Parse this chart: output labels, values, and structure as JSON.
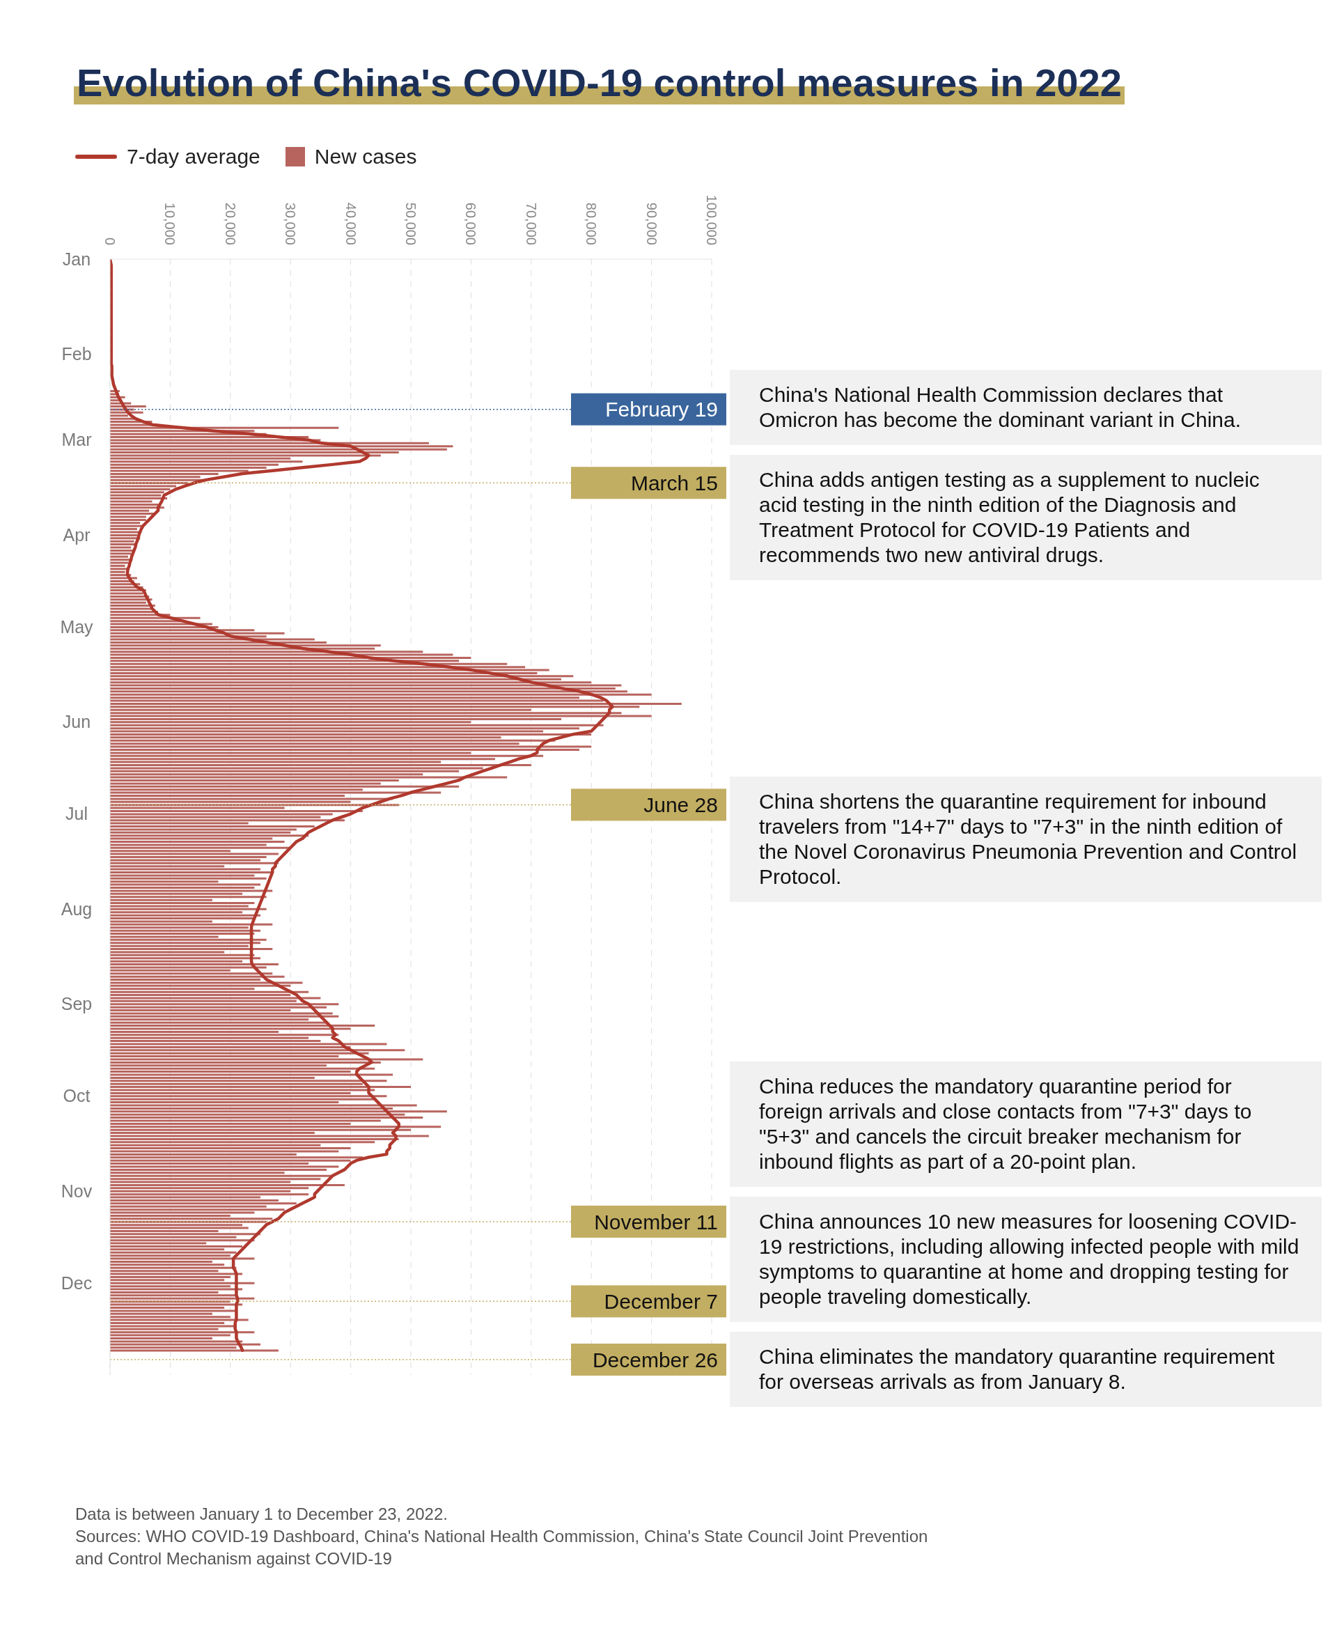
{
  "chart_data": {
    "type": "bar",
    "orientation": "horizontal",
    "title": "Evolution of China's COVID-19 control measures in 2022",
    "x": [
      "2022-01-01",
      "2022-01-02",
      "2022-01-03",
      "2022-01-04",
      "2022-01-05",
      "2022-01-06",
      "2022-01-07",
      "2022-01-08",
      "2022-01-09",
      "2022-01-10",
      "2022-01-11",
      "2022-01-12",
      "2022-01-13",
      "2022-01-14",
      "2022-01-15",
      "2022-01-16",
      "2022-01-17",
      "2022-01-18",
      "2022-01-19",
      "2022-01-20",
      "2022-01-21",
      "2022-01-22",
      "2022-01-23",
      "2022-01-24",
      "2022-01-25",
      "2022-01-26",
      "2022-01-27",
      "2022-01-28",
      "2022-01-29",
      "2022-01-30",
      "2022-01-31",
      "2022-02-01",
      "2022-02-02",
      "2022-02-03",
      "2022-02-04",
      "2022-02-05",
      "2022-02-06",
      "2022-02-07",
      "2022-02-08",
      "2022-02-09",
      "2022-02-10",
      "2022-02-11",
      "2022-02-12",
      "2022-02-13",
      "2022-02-14",
      "2022-02-15",
      "2022-02-16",
      "2022-02-17",
      "2022-02-18",
      "2022-02-19",
      "2022-02-20",
      "2022-02-21",
      "2022-02-22",
      "2022-02-23",
      "2022-02-24",
      "2022-02-25",
      "2022-02-26",
      "2022-02-27",
      "2022-02-28",
      "2022-03-01",
      "2022-03-02",
      "2022-03-03",
      "2022-03-04",
      "2022-03-05",
      "2022-03-06",
      "2022-03-07",
      "2022-03-08",
      "2022-03-09",
      "2022-03-10",
      "2022-03-11",
      "2022-03-12",
      "2022-03-13",
      "2022-03-14",
      "2022-03-15",
      "2022-03-16",
      "2022-03-17",
      "2022-03-18",
      "2022-03-19",
      "2022-03-20",
      "2022-03-21",
      "2022-03-22",
      "2022-03-23",
      "2022-03-24",
      "2022-03-25",
      "2022-03-26",
      "2022-03-27",
      "2022-03-28",
      "2022-03-29",
      "2022-03-30",
      "2022-03-31",
      "2022-04-01",
      "2022-04-02",
      "2022-04-03",
      "2022-04-04",
      "2022-04-05",
      "2022-04-06",
      "2022-04-07",
      "2022-04-08",
      "2022-04-09",
      "2022-04-10",
      "2022-04-11",
      "2022-04-12",
      "2022-04-13",
      "2022-04-14",
      "2022-04-15",
      "2022-04-16",
      "2022-04-17",
      "2022-04-18",
      "2022-04-19",
      "2022-04-20",
      "2022-04-21",
      "2022-04-22",
      "2022-04-23",
      "2022-04-24",
      "2022-04-25",
      "2022-04-26",
      "2022-04-27",
      "2022-04-28",
      "2022-04-29",
      "2022-04-30",
      "2022-05-01",
      "2022-05-02",
      "2022-05-03",
      "2022-05-04",
      "2022-05-05",
      "2022-05-06",
      "2022-05-07",
      "2022-05-08",
      "2022-05-09",
      "2022-05-10",
      "2022-05-11",
      "2022-05-12",
      "2022-05-13",
      "2022-05-14",
      "2022-05-15",
      "2022-05-16",
      "2022-05-17",
      "2022-05-18",
      "2022-05-19",
      "2022-05-20",
      "2022-05-21",
      "2022-05-22",
      "2022-05-23",
      "2022-05-24",
      "2022-05-25",
      "2022-05-26",
      "2022-05-27",
      "2022-05-28",
      "2022-05-29",
      "2022-05-30",
      "2022-05-31",
      "2022-06-01",
      "2022-06-02",
      "2022-06-03",
      "2022-06-04",
      "2022-06-05",
      "2022-06-06",
      "2022-06-07",
      "2022-06-08",
      "2022-06-09",
      "2022-06-10",
      "2022-06-11",
      "2022-06-12",
      "2022-06-13",
      "2022-06-14",
      "2022-06-15",
      "2022-06-16",
      "2022-06-17",
      "2022-06-18",
      "2022-06-19",
      "2022-06-20",
      "2022-06-21",
      "2022-06-22",
      "2022-06-23",
      "2022-06-24",
      "2022-06-25",
      "2022-06-26",
      "2022-06-27",
      "2022-06-28",
      "2022-06-29",
      "2022-06-30",
      "2022-07-01",
      "2022-07-02",
      "2022-07-03",
      "2022-07-04",
      "2022-07-05",
      "2022-07-06",
      "2022-07-07",
      "2022-07-08",
      "2022-07-09",
      "2022-07-10",
      "2022-07-11",
      "2022-07-12",
      "2022-07-13",
      "2022-07-14",
      "2022-07-15",
      "2022-07-16",
      "2022-07-17",
      "2022-07-18",
      "2022-07-19",
      "2022-07-20",
      "2022-07-21",
      "2022-07-22",
      "2022-07-23",
      "2022-07-24",
      "2022-07-25",
      "2022-07-26",
      "2022-07-27",
      "2022-07-28",
      "2022-07-29",
      "2022-07-30",
      "2022-07-31",
      "2022-08-01",
      "2022-08-02",
      "2022-08-03",
      "2022-08-04",
      "2022-08-05",
      "2022-08-06",
      "2022-08-07",
      "2022-08-08",
      "2022-08-09",
      "2022-08-10",
      "2022-08-11",
      "2022-08-12",
      "2022-08-13",
      "2022-08-14",
      "2022-08-15",
      "2022-08-16",
      "2022-08-17",
      "2022-08-18",
      "2022-08-19",
      "2022-08-20",
      "2022-08-21",
      "2022-08-22",
      "2022-08-23",
      "2022-08-24",
      "2022-08-25",
      "2022-08-26",
      "2022-08-27",
      "2022-08-28",
      "2022-08-29",
      "2022-08-30",
      "2022-08-31",
      "2022-09-01",
      "2022-09-02",
      "2022-09-03",
      "2022-09-04",
      "2022-09-05",
      "2022-09-06",
      "2022-09-07",
      "2022-09-08",
      "2022-09-09",
      "2022-09-10",
      "2022-09-11",
      "2022-09-12",
      "2022-09-13",
      "2022-09-14",
      "2022-09-15",
      "2022-09-16",
      "2022-09-17",
      "2022-09-18",
      "2022-09-19",
      "2022-09-20",
      "2022-09-21",
      "2022-09-22",
      "2022-09-23",
      "2022-09-24",
      "2022-09-25",
      "2022-09-26",
      "2022-09-27",
      "2022-09-28",
      "2022-09-29",
      "2022-09-30",
      "2022-10-01",
      "2022-10-02",
      "2022-10-03",
      "2022-10-04",
      "2022-10-05",
      "2022-10-06",
      "2022-10-07",
      "2022-10-08",
      "2022-10-09",
      "2022-10-10",
      "2022-10-11",
      "2022-10-12",
      "2022-10-13",
      "2022-10-14",
      "2022-10-15",
      "2022-10-16",
      "2022-10-17",
      "2022-10-18",
      "2022-10-19",
      "2022-10-20",
      "2022-10-21",
      "2022-10-22",
      "2022-10-23",
      "2022-10-24",
      "2022-10-25",
      "2022-10-26",
      "2022-10-27",
      "2022-10-28",
      "2022-10-29",
      "2022-10-30",
      "2022-10-31",
      "2022-11-01",
      "2022-11-02",
      "2022-11-03",
      "2022-11-04",
      "2022-11-05",
      "2022-11-06",
      "2022-11-07",
      "2022-11-08",
      "2022-11-09",
      "2022-11-10",
      "2022-11-11",
      "2022-11-12",
      "2022-11-13",
      "2022-11-14",
      "2022-11-15",
      "2022-11-16",
      "2022-11-17",
      "2022-11-18",
      "2022-11-19",
      "2022-11-20",
      "2022-11-21",
      "2022-11-22",
      "2022-11-23",
      "2022-11-24",
      "2022-11-25",
      "2022-11-26",
      "2022-11-27",
      "2022-11-28",
      "2022-11-29",
      "2022-11-30",
      "2022-12-01",
      "2022-12-02",
      "2022-12-03",
      "2022-12-04",
      "2022-12-05",
      "2022-12-06",
      "2022-12-07",
      "2022-12-08",
      "2022-12-09",
      "2022-12-10",
      "2022-12-11",
      "2022-12-12",
      "2022-12-13",
      "2022-12-14",
      "2022-12-15",
      "2022-12-16",
      "2022-12-17",
      "2022-12-18",
      "2022-12-19",
      "2022-12-20",
      "2022-12-21",
      "2022-12-22",
      "2022-12-23"
    ],
    "series": [
      {
        "name": "New cases",
        "color": "#b8645e",
        "values": [
          null,
          null,
          null,
          null,
          null,
          null,
          null,
          null,
          null,
          null,
          null,
          null,
          null,
          null,
          null,
          null,
          null,
          null,
          null,
          null,
          null,
          null,
          null,
          null,
          null,
          null,
          null,
          null,
          null,
          null,
          null,
          null,
          null,
          null,
          null,
          null,
          null,
          null,
          null,
          null,
          null,
          null,
          null,
          1600,
          1500,
          2500,
          2000,
          3500,
          6000,
          4000,
          5500,
          3000,
          4500,
          7000,
          8000,
          38000,
          24000,
          26000,
          33000,
          35000,
          53000,
          57000,
          56000,
          48000,
          45000,
          30000,
          32000,
          28000,
          26000,
          23000,
          18000,
          15000,
          16000,
          13000,
          11000,
          10000,
          9000,
          8500,
          9500,
          7000,
          8000,
          9000,
          6500,
          7500,
          6000,
          6000,
          5000,
          5500,
          4500,
          5000,
          4500,
          5000,
          4000,
          4500,
          3500,
          4000,
          3500,
          3000,
          3500,
          3000,
          2500,
          3000,
          2500,
          3500,
          4500,
          4000,
          5000,
          5500,
          6000,
          5500,
          6500,
          7000,
          6000,
          7500,
          7000,
          8000,
          10000,
          15000,
          12000,
          17000,
          18000,
          24000,
          29000,
          26000,
          34000,
          36000,
          45000,
          44000,
          52000,
          57000,
          60000,
          58000,
          66000,
          69000,
          73000,
          71000,
          77000,
          75000,
          80000,
          85000,
          84000,
          86000,
          90000,
          78000,
          82000,
          95000,
          88000,
          70000,
          85000,
          90000,
          75000,
          60000,
          82000,
          78000,
          72000,
          80000,
          65000,
          74000,
          68000,
          80000,
          78000,
          60000,
          72000,
          64000,
          55000,
          70000,
          62000,
          58000,
          52000,
          66000,
          48000,
          45000,
          58000,
          42000,
          55000,
          39000,
          47000,
          40000,
          48000,
          29000,
          42000,
          37000,
          35000,
          39000,
          23000,
          34000,
          31000,
          30000,
          33000,
          27000,
          29000,
          26000,
          30000,
          20000,
          28000,
          26000,
          25000,
          28000,
          19000,
          25000,
          27000,
          24000,
          26000,
          18000,
          25000,
          24000,
          27000,
          22000,
          26000,
          17000,
          24000,
          23000,
          26000,
          22000,
          25000,
          24000,
          17000,
          27000,
          23000,
          25000,
          24000,
          18000,
          26000,
          25000,
          23000,
          27000,
          19000,
          24000,
          25000,
          22000,
          28000,
          26000,
          20000,
          27000,
          29000,
          25000,
          32000,
          30000,
          24000,
          33000,
          30000,
          35000,
          31000,
          38000,
          36000,
          30000,
          37000,
          38000,
          33000,
          36000,
          44000,
          40000,
          28000,
          38000,
          33000,
          35000,
          46000,
          40000,
          49000,
          43000,
          38000,
          52000,
          45000,
          36000,
          44000,
          40000,
          47000,
          34000,
          46000,
          42000,
          50000,
          44000,
          40000,
          46000,
          44000,
          38000,
          51000,
          47000,
          56000,
          49000,
          52000,
          45000,
          40000,
          55000,
          50000,
          34000,
          53000,
          48000,
          44000,
          35000,
          40000,
          38000,
          31000,
          42000,
          40000,
          33000,
          38000,
          36000,
          29000,
          37000,
          35000,
          30000,
          39000,
          33000,
          30000,
          33000,
          25000,
          28000,
          31000,
          26000,
          29000,
          24000,
          20000,
          27000,
          26000,
          22000,
          23000,
          18000,
          25000,
          21000,
          24000,
          16000,
          22000,
          19000,
          21000,
          20000,
          24000,
          17000,
          19000,
          21000,
          18000,
          22000,
          20000,
          19000,
          24000,
          20000,
          22000,
          18000,
          21000,
          24000,
          20000,
          22000,
          19000,
          21000,
          17000,
          20000,
          23000,
          19000,
          21000,
          18000,
          24000,
          20000,
          17000,
          22000,
          25000,
          21000,
          28000
        ]
      },
      {
        "name": "7-day average",
        "type": "line",
        "color": "#b0392e",
        "values": [
          0,
          100,
          200,
          200,
          200,
          200,
          200,
          200,
          200,
          200,
          200,
          200,
          200,
          200,
          200,
          200,
          200,
          200,
          200,
          200,
          200,
          200,
          200,
          200,
          200,
          200,
          200,
          200,
          200,
          200,
          200,
          200,
          200,
          200,
          200,
          300,
          300,
          300,
          300,
          400,
          500,
          600,
          800,
          1000,
          1200,
          1400,
          1700,
          2000,
          2300,
          2600,
          3000,
          3500,
          4200,
          5500,
          7000,
          12000,
          17000,
          23000,
          28000,
          33000,
          35000,
          40000,
          41000,
          42000,
          43000,
          42500,
          41500,
          37000,
          32000,
          27000,
          22000,
          19000,
          16000,
          14000,
          12500,
          11000,
          10000,
          9000,
          8800,
          8600,
          8300,
          8000,
          8000,
          7500,
          7000,
          6500,
          6000,
          5500,
          5200,
          5000,
          4800,
          4700,
          4500,
          4300,
          4200,
          4000,
          3800,
          3600,
          3500,
          3300,
          3200,
          3000,
          2900,
          2900,
          3200,
          3500,
          4000,
          4500,
          5500,
          5800,
          6000,
          6300,
          6500,
          6800,
          7000,
          7500,
          8000,
          10000,
          12000,
          14000,
          16000,
          17500,
          19000,
          20000,
          23000,
          26000,
          29000,
          32000,
          36000,
          40000,
          43000,
          47000,
          52000,
          56000,
          60000,
          63000,
          66000,
          68000,
          70000,
          72500,
          75000,
          78000,
          80000,
          81500,
          82500,
          83000,
          83500,
          83000,
          83000,
          82500,
          82000,
          81500,
          81000,
          80500,
          80000,
          77000,
          75000,
          73000,
          72000,
          71500,
          71000,
          71000,
          70000,
          68000,
          66500,
          65000,
          63500,
          62000,
          60500,
          59000,
          58000,
          56000,
          54000,
          52000,
          50000,
          48500,
          46500,
          45000,
          43500,
          42000,
          41000,
          40000,
          38500,
          37000,
          36000,
          35000,
          34000,
          33000,
          32500,
          32000,
          31000,
          30500,
          30000,
          29500,
          29000,
          28500,
          28000,
          27500,
          27500,
          27000,
          27000,
          26800,
          26600,
          26400,
          26200,
          26000,
          25800,
          25600,
          25400,
          25200,
          25000,
          24800,
          24600,
          24400,
          24200,
          24000,
          23800,
          23600,
          23500,
          23500,
          23500,
          23500,
          23500,
          23500,
          23500,
          23500,
          23500,
          23500,
          23500,
          23500,
          23600,
          24000,
          24500,
          25000,
          25500,
          26000,
          27000,
          28000,
          29000,
          30000,
          31000,
          31500,
          32000,
          33000,
          33500,
          34000,
          34500,
          35000,
          35500,
          36000,
          36500,
          37000,
          37000,
          37500,
          37000,
          38000,
          38500,
          39000,
          40000,
          41000,
          42000,
          43000,
          43500,
          42500,
          41500,
          41000,
          41000,
          41500,
          42000,
          42500,
          43000,
          43000,
          43000,
          43500,
          44000,
          44500,
          45000,
          45500,
          46000,
          46500,
          47000,
          47500,
          48000,
          48000,
          47500,
          47000,
          47500,
          47500,
          47000,
          46500,
          46500,
          46000,
          46000,
          43000,
          41000,
          40000,
          39500,
          39000,
          38000,
          37000,
          36500,
          36000,
          35500,
          35000,
          34500,
          34000,
          34000,
          33000,
          32000,
          31000,
          30000,
          29000,
          28500,
          28000,
          27000,
          26000,
          25500,
          25000,
          24500,
          24000,
          23500,
          23000,
          22500,
          22000,
          21500,
          21000,
          20500,
          20500,
          20500,
          20500,
          20800,
          21000,
          21000,
          21000,
          21000,
          21000,
          21000,
          21000,
          21000,
          21200,
          21200,
          21000,
          21000,
          21000,
          21000,
          21000,
          21000,
          20800,
          20800,
          20800,
          21000,
          21000,
          21000,
          21200,
          21500,
          21800,
          22000
        ]
      }
    ],
    "xlim": [
      0,
      100000
    ],
    "xticks": [
      0,
      {
        "value": 10000,
        "label": "10,000"
      },
      {
        "value": 20000,
        "label": "20,000"
      },
      {
        "value": 30000,
        "label": "30,000"
      },
      {
        "value": 40000,
        "label": "40,000"
      },
      {
        "value": 50000,
        "label": "50,000"
      },
      {
        "value": 60000,
        "label": "60,000"
      },
      {
        "value": 70000,
        "label": "70,000"
      },
      {
        "value": 80000,
        "label": "80,000"
      },
      {
        "value": 90000,
        "label": "90,000"
      },
      {
        "value": 100000,
        "label": "100,000"
      }
    ],
    "yticks": [
      {
        "value": "2022-01-01",
        "label": "Jan"
      },
      {
        "value": "2022-02-01",
        "label": "Feb"
      },
      {
        "value": "2022-03-01",
        "label": "Mar"
      },
      {
        "value": "2022-04-01",
        "label": "Apr"
      },
      {
        "value": "2022-05-01",
        "label": "May"
      },
      {
        "value": "2022-06-01",
        "label": "Jun"
      },
      {
        "value": "2022-07-01",
        "label": "Jul"
      },
      {
        "value": "2022-08-01",
        "label": "Aug"
      },
      {
        "value": "2022-09-01",
        "label": "Sep"
      },
      {
        "value": "2022-10-01",
        "label": "Oct"
      },
      {
        "value": "2022-11-01",
        "label": "Nov"
      },
      {
        "value": "2022-12-01",
        "label": "Dec"
      }
    ],
    "ylim": [
      "2022-12-31",
      "2022-01-01"
    ],
    "grid": "x",
    "legend": "top left",
    "ref_lines": [
      {
        "axis": "y",
        "value": "2022-02-19",
        "label": "February 19",
        "color": "#3a659c"
      },
      {
        "axis": "y",
        "value": "2022-03-15",
        "label": "March 15",
        "color": "#c2ae62"
      },
      {
        "axis": "y",
        "value": "2022-06-28",
        "label": "June 28",
        "color": "#c2ae62"
      },
      {
        "axis": "y",
        "value": "2022-11-11",
        "label": "November 11",
        "color": "#c2ae62"
      },
      {
        "axis": "y",
        "value": "2022-12-07",
        "label": "December 7",
        "color": "#c2ae62"
      },
      {
        "axis": "y",
        "value": "2022-12-26",
        "label": "December 26",
        "color": "#c2ae62"
      }
    ],
    "annotations": [
      "China's National Health Commission declares that Omicron has become the dominant variant in China.",
      "China adds antigen testing as a supplement to nucleic acid testing in the ninth edition of the Diagnosis and Treatment Protocol for COVID-19 Patients and recommends two new antiviral drugs.",
      "China shortens the quarantine requirement for inbound travelers from \"14+7\" days to \"7+3\" in the ninth edition of the Novel Coronavirus Pneumonia Prevention and Control Protocol.",
      "China reduces the mandatory quarantine period for foreign arrivals and close contacts from \"7+3\" days to \"5+3\" and cancels the circuit breaker mechanism for inbound flights as part of a 20-point plan.",
      "China announces 10 new measures for loosening COVID-19 restrictions, including allowing infected people with mild symptoms to quarantine at home and dropping testing for people traveling domestically.",
      "China eliminates the mandatory quarantine requirement for overseas arrivals as from January 8.",
      "Data is between January 1 to December 23, 2022.",
      "Sources: WHO COVID-19 Dashboard, China's National Health Commission, China's State Council Joint Prevention and Control Mechanism against COVID-19"
    ]
  }
}
